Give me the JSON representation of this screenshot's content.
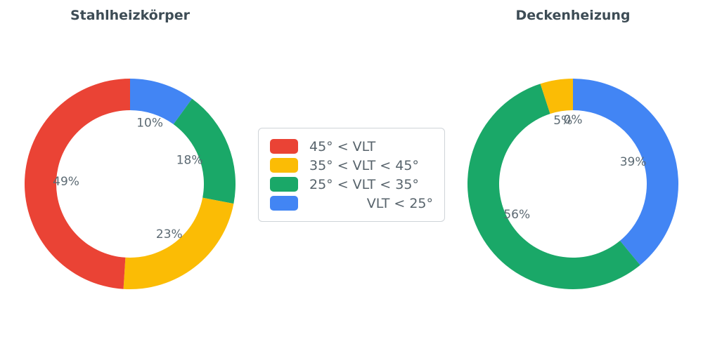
{
  "chart_data": [
    {
      "type": "pie",
      "title": "Stahlheizkörper",
      "hole": 0.7,
      "direction": "clockwise-from-top, reversed label order",
      "labels": [
        "45° < VLT",
        "35° < VLT < 45°",
        "25° < VLT < 35°",
        "VLT < 25°"
      ],
      "values": [
        49,
        23,
        18,
        10
      ],
      "value_labels": [
        "49%",
        "23%",
        "18%",
        "10%"
      ],
      "colors": [
        "#EA4335",
        "#FBBC05",
        "#1AA868",
        "#4285F4"
      ]
    },
    {
      "type": "pie",
      "title": "Deckenheizung",
      "hole": 0.7,
      "direction": "clockwise-from-top, reversed label order",
      "labels": [
        "45° < VLT",
        "35° < VLT < 45°",
        "25° < VLT < 35°",
        "VLT < 25°"
      ],
      "values": [
        0,
        5,
        56,
        39
      ],
      "value_labels": [
        "0%",
        "5%",
        "56%",
        "39%"
      ],
      "colors": [
        "#EA4335",
        "#FBBC05",
        "#1AA868",
        "#4285F4"
      ]
    }
  ],
  "legend": {
    "position": "center-between-charts",
    "items": [
      {
        "label": "45° < VLT",
        "color": "#EA4335"
      },
      {
        "label": "35° < VLT < 45°",
        "color": "#FBBC05"
      },
      {
        "label": "25° < VLT < 35°",
        "color": "#1AA868"
      },
      {
        "label": "VLT < 25°",
        "color": "#4285F4"
      }
    ]
  }
}
